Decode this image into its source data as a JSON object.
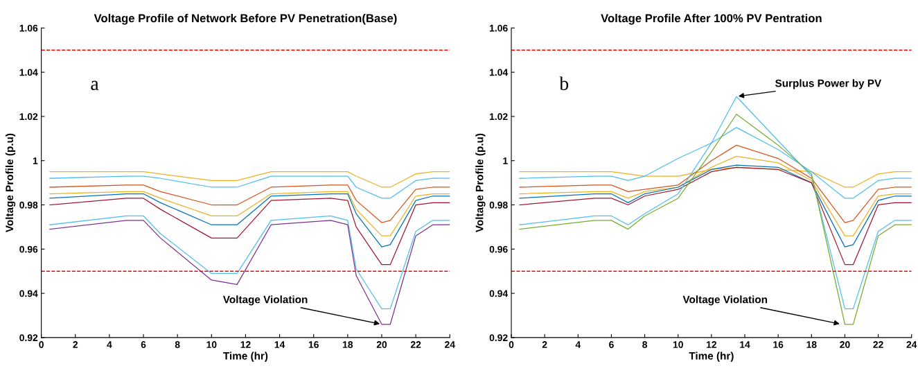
{
  "chart_data": [
    {
      "type": "line",
      "title": "Voltage Profile of Network Before PV Penetration(Base)",
      "xlabel": "Time (hr)",
      "ylabel": "Voltage Profile (p.u)",
      "x": [
        0.5,
        5,
        6,
        7,
        10,
        11.5,
        13.5,
        17,
        18,
        18.5,
        20,
        20.5,
        22,
        23,
        24
      ],
      "series": [
        {
          "color": "#edb120",
          "values": [
            0.995,
            0.995,
            0.995,
            0.994,
            0.991,
            0.991,
            0.995,
            0.995,
            0.995,
            0.993,
            0.988,
            0.988,
            0.994,
            0.995,
            0.995
          ]
        },
        {
          "color": "#4dbeee",
          "values": [
            0.992,
            0.993,
            0.993,
            0.992,
            0.988,
            0.988,
            0.993,
            0.993,
            0.993,
            0.988,
            0.983,
            0.983,
            0.991,
            0.992,
            0.992
          ]
        },
        {
          "color": "#d95319",
          "values": [
            0.988,
            0.989,
            0.989,
            0.986,
            0.98,
            0.98,
            0.988,
            0.989,
            0.989,
            0.982,
            0.972,
            0.973,
            0.987,
            0.988,
            0.988
          ]
        },
        {
          "color": "#edb120",
          "values": [
            0.985,
            0.986,
            0.986,
            0.983,
            0.975,
            0.975,
            0.985,
            0.986,
            0.986,
            0.978,
            0.966,
            0.966,
            0.984,
            0.985,
            0.985
          ]
        },
        {
          "color": "#0072bd",
          "values": [
            0.983,
            0.985,
            0.985,
            0.981,
            0.971,
            0.971,
            0.984,
            0.985,
            0.985,
            0.976,
            0.961,
            0.962,
            0.982,
            0.984,
            0.984
          ]
        },
        {
          "color": "#a2142f",
          "values": [
            0.98,
            0.983,
            0.983,
            0.978,
            0.965,
            0.965,
            0.982,
            0.983,
            0.982,
            0.97,
            0.953,
            0.953,
            0.98,
            0.981,
            0.981
          ]
        },
        {
          "color": "#4dbeee",
          "values": [
            0.971,
            0.975,
            0.975,
            0.967,
            0.949,
            0.949,
            0.973,
            0.975,
            0.973,
            0.951,
            0.933,
            0.933,
            0.968,
            0.973,
            0.973
          ]
        },
        {
          "color": "#7e2f8e",
          "values": [
            0.969,
            0.973,
            0.973,
            0.965,
            0.946,
            0.944,
            0.971,
            0.973,
            0.971,
            0.948,
            0.926,
            0.926,
            0.966,
            0.971,
            0.971
          ]
        }
      ],
      "xlim": [
        0,
        24
      ],
      "xticks": [
        0,
        2,
        4,
        6,
        8,
        10,
        12,
        14,
        16,
        18,
        20,
        22,
        24
      ],
      "ylim": [
        0.92,
        1.06
      ],
      "yticks": [
        0.92,
        0.94,
        0.96,
        0.98,
        {
          "value": 1.0,
          "label": "1"
        },
        1.02,
        1.04,
        1.06
      ],
      "ref_lines": [
        {
          "axis": "y",
          "value": 1.05,
          "color": "#ff0000",
          "line_style": "dashed"
        },
        {
          "axis": "y",
          "value": 0.95,
          "color": "#ff0000",
          "line_style": "dashed"
        }
      ],
      "annotations": [
        "a",
        {
          "text": "Voltage Violation",
          "x": 20,
          "y": 0.926
        }
      ],
      "grid": false,
      "marker": "none",
      "line_style": "solid"
    },
    {
      "type": "line",
      "title": "Voltage Profile After 100% PV Pentration",
      "xlabel": "Time (hr)",
      "ylabel": "Voltage Profile (p.u)",
      "x": [
        0.5,
        5,
        6,
        7,
        8,
        10,
        12,
        13.5,
        16,
        18,
        20,
        20.5,
        22,
        23,
        24
      ],
      "series": [
        {
          "color": "#edb120",
          "values": [
            0.995,
            0.995,
            0.995,
            0.994,
            0.993,
            0.993,
            0.996,
            0.997,
            0.996,
            0.995,
            0.988,
            0.988,
            0.994,
            0.995,
            0.995
          ]
        },
        {
          "color": "#4dbeee",
          "values": [
            0.992,
            0.993,
            0.993,
            0.991,
            0.993,
            1.001,
            1.008,
            1.015,
            1.005,
            0.995,
            0.983,
            0.983,
            0.991,
            0.992,
            0.992
          ]
        },
        {
          "color": "#d95319",
          "values": [
            0.988,
            0.989,
            0.989,
            0.986,
            0.987,
            0.989,
            1.0,
            1.007,
            1.001,
            0.992,
            0.972,
            0.973,
            0.987,
            0.988,
            0.988
          ]
        },
        {
          "color": "#edb120",
          "values": [
            0.985,
            0.986,
            0.986,
            0.983,
            0.986,
            0.988,
            0.997,
            1.002,
            0.999,
            0.991,
            0.966,
            0.966,
            0.984,
            0.985,
            0.985
          ]
        },
        {
          "color": "#0072bd",
          "values": [
            0.983,
            0.985,
            0.985,
            0.981,
            0.985,
            0.988,
            0.996,
            0.998,
            0.997,
            0.99,
            0.961,
            0.962,
            0.982,
            0.984,
            0.984
          ]
        },
        {
          "color": "#a2142f",
          "values": [
            0.98,
            0.983,
            0.983,
            0.98,
            0.984,
            0.987,
            0.995,
            0.997,
            0.996,
            0.99,
            0.953,
            0.953,
            0.98,
            0.981,
            0.981
          ]
        },
        {
          "color": "#4dbeee",
          "values": [
            0.971,
            0.975,
            0.975,
            0.971,
            0.976,
            0.985,
            1.008,
            1.029,
            1.009,
            0.993,
            0.933,
            0.933,
            0.968,
            0.973,
            0.973
          ]
        },
        {
          "color": "#77ac30",
          "values": [
            0.969,
            0.973,
            0.973,
            0.969,
            0.975,
            0.983,
            1.004,
            1.021,
            1.007,
            0.994,
            0.926,
            0.926,
            0.966,
            0.971,
            0.971
          ]
        }
      ],
      "xlim": [
        0,
        24
      ],
      "xticks": [
        0,
        2,
        4,
        6,
        8,
        10,
        12,
        14,
        16,
        18,
        20,
        22,
        24
      ],
      "ylim": [
        0.92,
        1.06
      ],
      "yticks": [
        0.92,
        0.94,
        0.96,
        0.98,
        {
          "value": 1.0,
          "label": "1"
        },
        1.02,
        1.04,
        1.06
      ],
      "ref_lines": [
        {
          "axis": "y",
          "value": 1.05,
          "color": "#ff0000",
          "line_style": "dashed"
        },
        {
          "axis": "y",
          "value": 0.95,
          "color": "#ff0000",
          "line_style": "dashed"
        }
      ],
      "annotations": [
        "b",
        {
          "text": "Surplus Power by PV",
          "x": 13.5,
          "y": 1.029
        },
        {
          "text": "Voltage Violation",
          "x": 19.8,
          "y": 0.926
        }
      ],
      "grid": false,
      "marker": "none",
      "line_style": "solid"
    }
  ]
}
